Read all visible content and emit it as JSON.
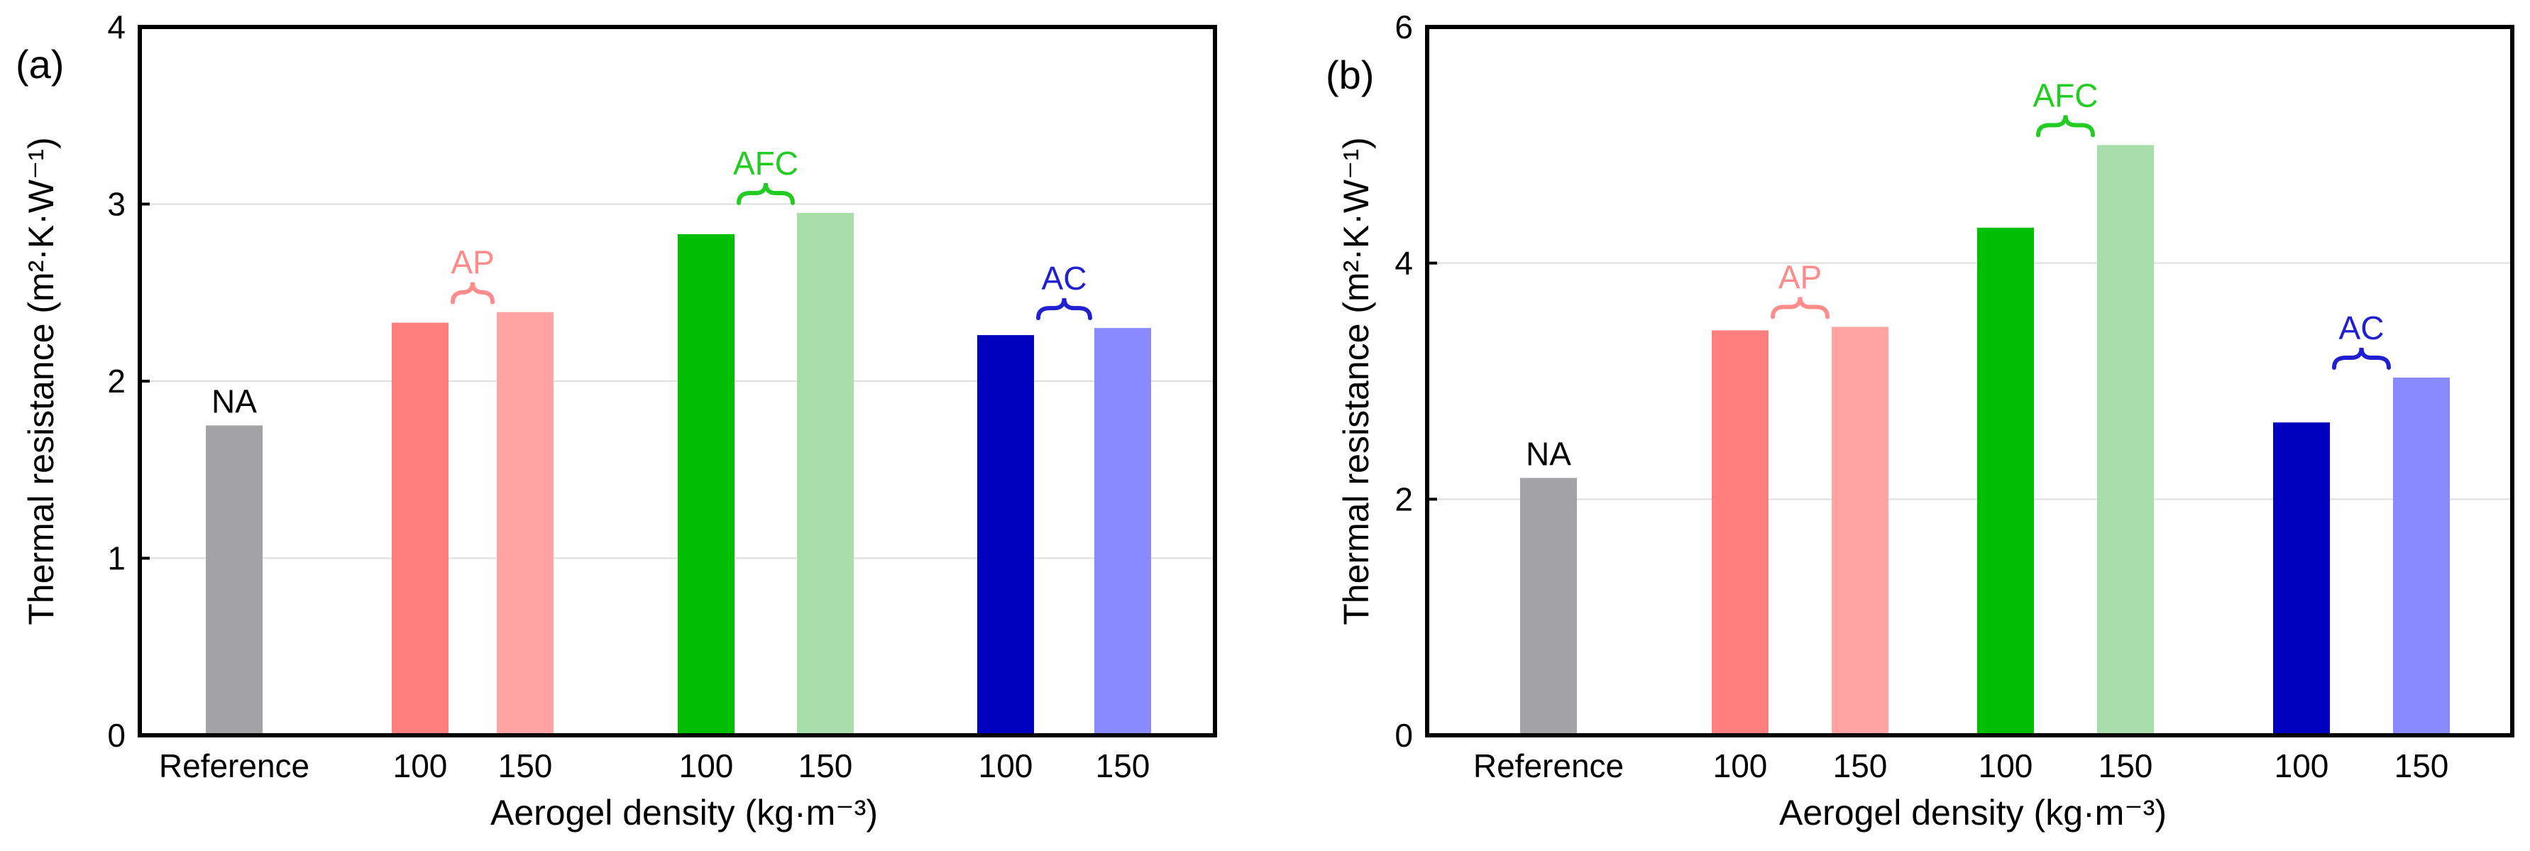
{
  "chart_data": [
    {
      "type": "bar",
      "panel_label": "(a)",
      "ylabel": "Thermal resistance (m²·K·W⁻¹)",
      "xlabel": "Aerogel density (kg·m⁻³)",
      "ylim": [
        0,
        4
      ],
      "yticks": [
        "0",
        "1",
        "2",
        "3",
        "4"
      ],
      "grid": true,
      "bars": [
        {
          "group": "NA",
          "category": "Reference",
          "value": 1.75,
          "color": "#a3a3a6"
        },
        {
          "group": "AP",
          "category": "100",
          "value": 2.33,
          "color": "#ff7f7f"
        },
        {
          "group": "AP",
          "category": "150",
          "value": 2.39,
          "color": "#ffa3a3"
        },
        {
          "group": "AFC",
          "category": "100",
          "value": 2.83,
          "color": "#00bf00"
        },
        {
          "group": "AFC",
          "category": "150",
          "value": 2.95,
          "color": "#a8dea8"
        },
        {
          "group": "AC",
          "category": "100",
          "value": 2.26,
          "color": "#0000bf"
        },
        {
          "group": "AC",
          "category": "150",
          "value": 2.3,
          "color": "#8a8aff"
        }
      ],
      "group_labels": [
        {
          "text": "NA",
          "color": "#000000"
        },
        {
          "text": "AP",
          "color": "#ff8c8c"
        },
        {
          "text": "AFC",
          "color": "#22cc22"
        },
        {
          "text": "AC",
          "color": "#2020d0"
        }
      ]
    },
    {
      "type": "bar",
      "panel_label": "(b)",
      "ylabel": "Thermal resistance (m²·K·W⁻¹)",
      "xlabel": "Aerogel density (kg·m⁻³)",
      "ylim": [
        0,
        6
      ],
      "yticks": [
        "0",
        "2",
        "4",
        "6"
      ],
      "grid": true,
      "bars": [
        {
          "group": "NA",
          "category": "Reference",
          "value": 2.18,
          "color": "#a3a3a6"
        },
        {
          "group": "AP",
          "category": "100",
          "value": 3.43,
          "color": "#ff7f7f"
        },
        {
          "group": "AP",
          "category": "150",
          "value": 3.46,
          "color": "#ffa3a3"
        },
        {
          "group": "AFC",
          "category": "100",
          "value": 4.3,
          "color": "#00bf00"
        },
        {
          "group": "AFC",
          "category": "150",
          "value": 5.0,
          "color": "#a8dea8"
        },
        {
          "group": "AC",
          "category": "100",
          "value": 2.65,
          "color": "#0000bf"
        },
        {
          "group": "AC",
          "category": "150",
          "value": 3.03,
          "color": "#8a8aff"
        }
      ],
      "group_labels": [
        {
          "text": "NA",
          "color": "#000000"
        },
        {
          "text": "AP",
          "color": "#ff8c8c"
        },
        {
          "text": "AFC",
          "color": "#22cc22"
        },
        {
          "text": "AC",
          "color": "#2020d0"
        }
      ]
    }
  ]
}
